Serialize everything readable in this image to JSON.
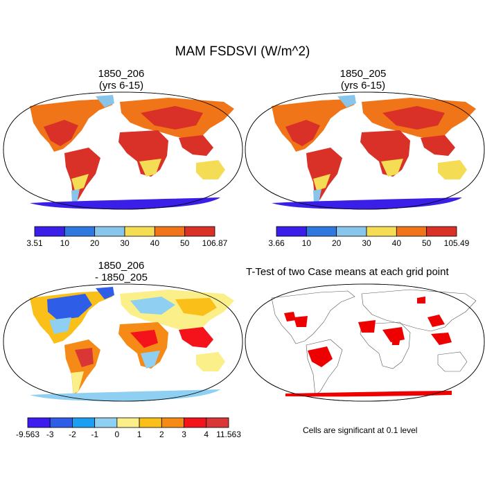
{
  "figure": {
    "title": "MAM FSDSVI (W/m^2)"
  },
  "panels": [
    {
      "id": "top-left",
      "title_line1": "1850_206",
      "title_line2": "(yrs 6-15)",
      "colorbar": {
        "colors": [
          "#3a1fe8",
          "#2e78e0",
          "#87c5ea",
          "#f5dc55",
          "#f07418",
          "#d93027"
        ],
        "labels": [
          "3.51",
          "10",
          "20",
          "30",
          "40",
          "50",
          "106.87"
        ]
      }
    },
    {
      "id": "top-right",
      "title_line1": "1850_205",
      "title_line2": "(yrs 6-15)",
      "colorbar": {
        "colors": [
          "#3a1fe8",
          "#2e78e0",
          "#87c5ea",
          "#f5dc55",
          "#f07418",
          "#d93027"
        ],
        "labels": [
          "3.66",
          "10",
          "20",
          "30",
          "40",
          "50",
          "105.49"
        ]
      }
    },
    {
      "id": "bottom-left",
      "title_line1": "1850_206",
      "title_line2": "- 1850_205",
      "colorbar": {
        "colors": [
          "#3d1cf0",
          "#2e5ee8",
          "#1c9ff0",
          "#8fd0f2",
          "#fbef8a",
          "#fbbf1a",
          "#f68a16",
          "#f4131a",
          "#d93636"
        ],
        "labels": [
          "-9.563",
          "-3",
          "-2",
          "-1",
          "0",
          "1",
          "2",
          "3",
          "4",
          "11.563"
        ]
      }
    },
    {
      "id": "bottom-right",
      "title_line1": "T-Test of two Case means at each grid point",
      "note": "Cells are significant at 0.1 level"
    }
  ]
}
